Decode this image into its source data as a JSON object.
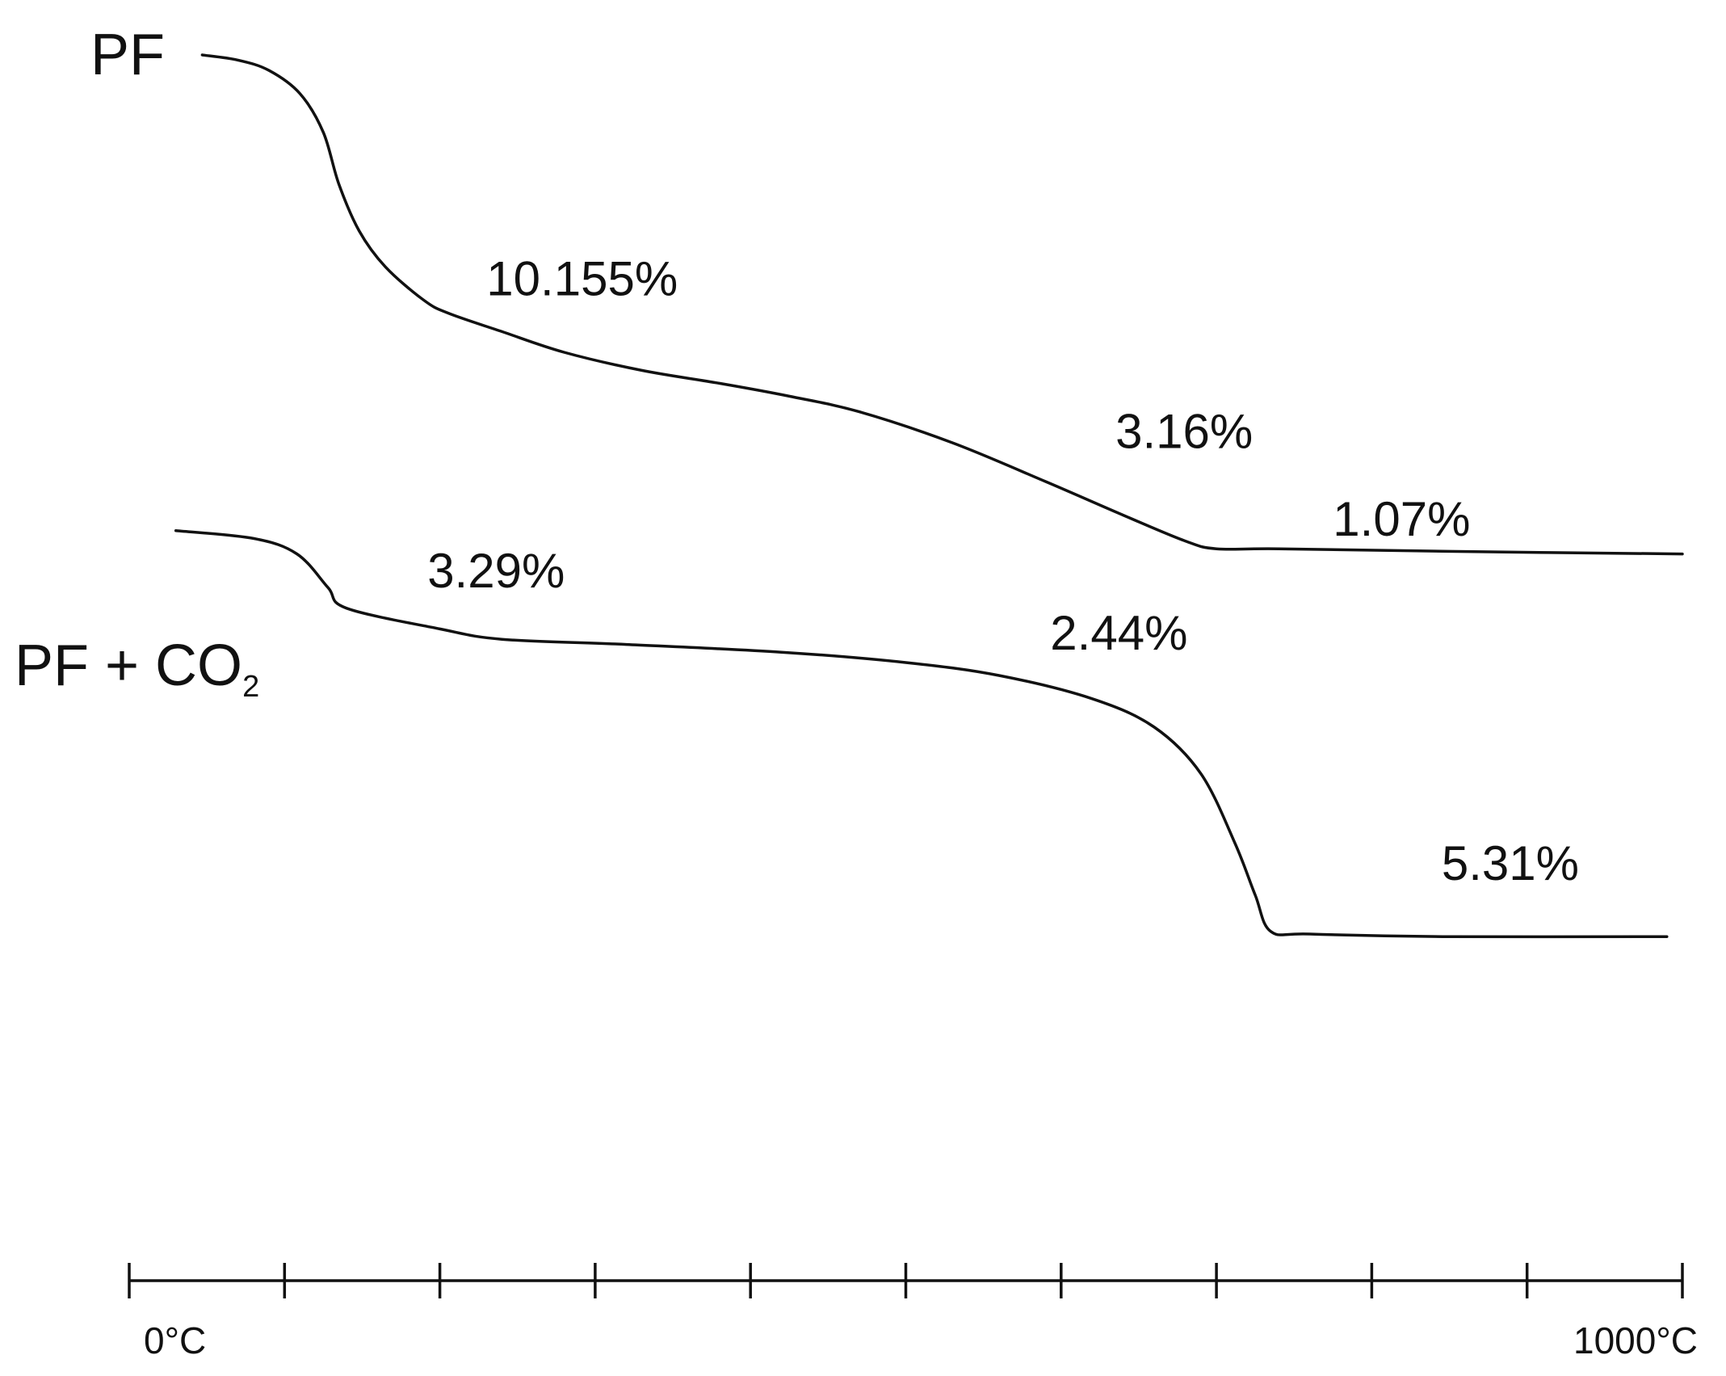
{
  "chart_data": {
    "type": "line",
    "xlim": [
      0,
      1000
    ],
    "x_unit": "°C",
    "x_tick_count": 11,
    "x_tick_labels": [
      {
        "value": 0,
        "text": "0°C"
      },
      {
        "value": 1000,
        "text": "1000°C"
      }
    ],
    "grid": false,
    "legend": "none",
    "series": [
      {
        "name": "PF",
        "name_sub": "",
        "points": [
          [
            47,
            0
          ],
          [
            70,
            2
          ],
          [
            90,
            6
          ],
          [
            110,
            15
          ],
          [
            125,
            30
          ],
          [
            135,
            50
          ],
          [
            148,
            68
          ],
          [
            165,
            82
          ],
          [
            190,
            95
          ],
          [
            206,
            100
          ],
          [
            240,
            107
          ],
          [
            280,
            115
          ],
          [
            330,
            122
          ],
          [
            380,
            127
          ],
          [
            425,
            132
          ],
          [
            470,
            138
          ],
          [
            530,
            150
          ],
          [
            590,
            165
          ],
          [
            640,
            178
          ],
          [
            680,
            188
          ],
          [
            700,
            191
          ],
          [
            740,
            191
          ],
          [
            850,
            192
          ],
          [
            1000,
            193
          ]
        ],
        "annotations": [
          {
            "text": "10.155%",
            "x": 230,
            "y": 93
          },
          {
            "text": "3.16%",
            "x": 635,
            "y": 152
          },
          {
            "text": "1.07%",
            "x": 775,
            "y": 186
          }
        ]
      },
      {
        "name": "PF + CO",
        "name_sub": "2",
        "points": [
          [
            30,
            184
          ],
          [
            80,
            187
          ],
          [
            108,
            193
          ],
          [
            128,
            206
          ],
          [
            140,
            214
          ],
          [
            200,
            222
          ],
          [
            240,
            226
          ],
          [
            320,
            228
          ],
          [
            420,
            231
          ],
          [
            500,
            235
          ],
          [
            560,
            240
          ],
          [
            620,
            249
          ],
          [
            660,
            260
          ],
          [
            690,
            278
          ],
          [
            712,
            305
          ],
          [
            725,
            325
          ],
          [
            735,
            339
          ],
          [
            760,
            340
          ],
          [
            850,
            341
          ],
          [
            990,
            341
          ]
        ],
        "annotations": [
          {
            "text": "3.29%",
            "x": 192,
            "y": 206
          },
          {
            "text": "2.44%",
            "x": 593,
            "y": 230
          },
          {
            "text": "5.31%",
            "x": 845,
            "y": 319
          }
        ]
      }
    ]
  }
}
